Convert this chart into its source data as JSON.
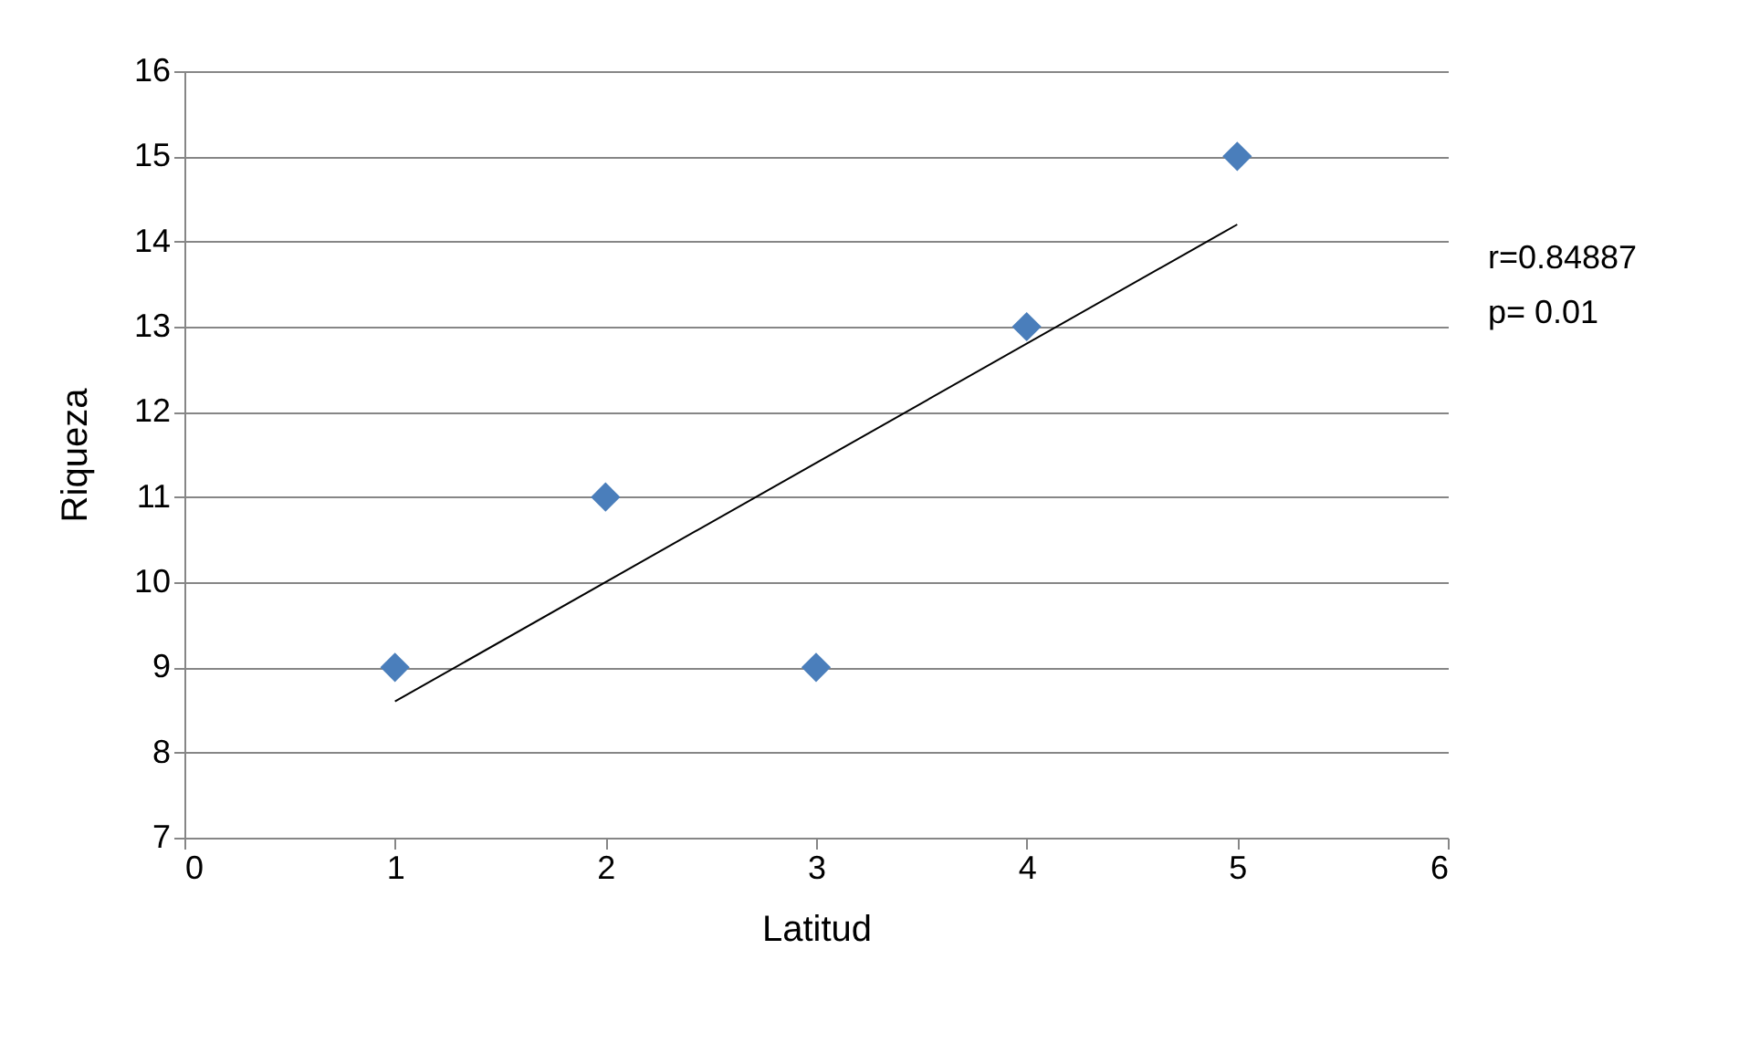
{
  "chart_data": {
    "type": "scatter",
    "xlabel": "Latitud",
    "ylabel": "Riqueza",
    "x": [
      1,
      2,
      3,
      4,
      5
    ],
    "series": [
      {
        "color": "#4a7ebb",
        "marker": "diamond",
        "values": [
          9,
          11,
          9,
          13,
          15
        ]
      },
      {
        "type": "line",
        "color": "#000000",
        "marker": "none",
        "line_style": "solid",
        "x": [
          1,
          5
        ],
        "values": [
          8.6,
          14.2
        ]
      }
    ],
    "xlim": [
      0,
      6
    ],
    "xticks": [
      0,
      1,
      2,
      3,
      4,
      5,
      6
    ],
    "ylim": [
      7,
      16
    ],
    "yticks": [
      7,
      8,
      9,
      10,
      11,
      12,
      13,
      14,
      15,
      16
    ],
    "grid": "y",
    "annotations": [
      "r=0.84887",
      "p= 0.01"
    ]
  }
}
